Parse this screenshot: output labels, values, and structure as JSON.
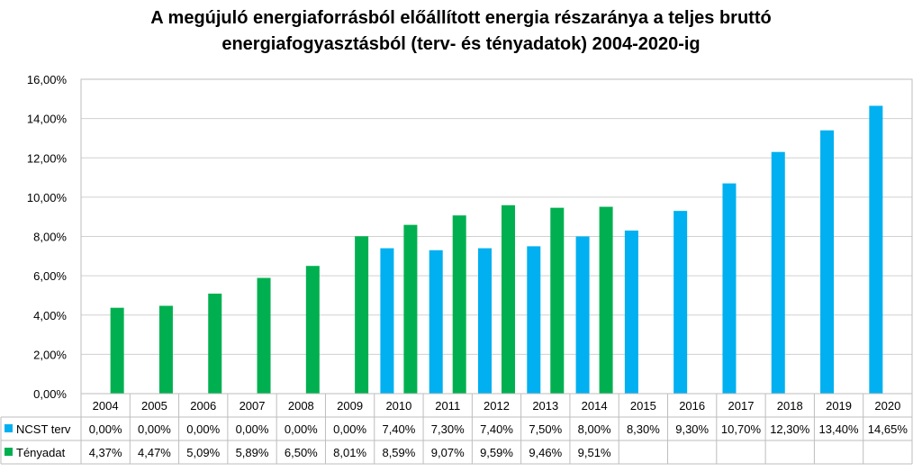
{
  "chart_data": {
    "type": "bar",
    "title_line1": "A megújuló energiaforrásból előállított energia részaránya a teljes bruttó",
    "title_line2": "energiafogyasztásból (terv- és tényadatok) 2004-2020-ig",
    "categories": [
      "2004",
      "2005",
      "2006",
      "2007",
      "2008",
      "2009",
      "2010",
      "2011",
      "2012",
      "2013",
      "2014",
      "2015",
      "2016",
      "2017",
      "2018",
      "2019",
      "2020"
    ],
    "ylim": [
      0,
      16
    ],
    "ytick_labels": [
      "0,00%",
      "2,00%",
      "4,00%",
      "6,00%",
      "8,00%",
      "10,00%",
      "12,00%",
      "14,00%",
      "16,00%"
    ],
    "grid": true,
    "legend": "data-table",
    "series": [
      {
        "name": "NCST terv",
        "color": "#00B0F0",
        "values": [
          0.0,
          0.0,
          0.0,
          0.0,
          0.0,
          0.0,
          7.4,
          7.3,
          7.4,
          7.5,
          8.0,
          8.3,
          9.3,
          10.7,
          12.3,
          13.4,
          14.65
        ],
        "labels": [
          "0,00%",
          "0,00%",
          "0,00%",
          "0,00%",
          "0,00%",
          "0,00%",
          "7,40%",
          "7,30%",
          "7,40%",
          "7,50%",
          "8,00%",
          "8,30%",
          "9,30%",
          "10,70%",
          "12,30%",
          "13,40%",
          "14,65%"
        ]
      },
      {
        "name": "Tényadat",
        "color": "#00B050",
        "values": [
          4.37,
          4.47,
          5.09,
          5.89,
          6.5,
          8.01,
          8.59,
          9.07,
          9.59,
          9.46,
          9.51,
          null,
          null,
          null,
          null,
          null,
          null
        ],
        "labels": [
          "4,37%",
          "4,47%",
          "5,09%",
          "5,89%",
          "6,50%",
          "8,01%",
          "8,59%",
          "9,07%",
          "9,59%",
          "9,46%",
          "9,51%",
          "",
          "",
          "",
          "",
          "",
          ""
        ]
      }
    ]
  }
}
